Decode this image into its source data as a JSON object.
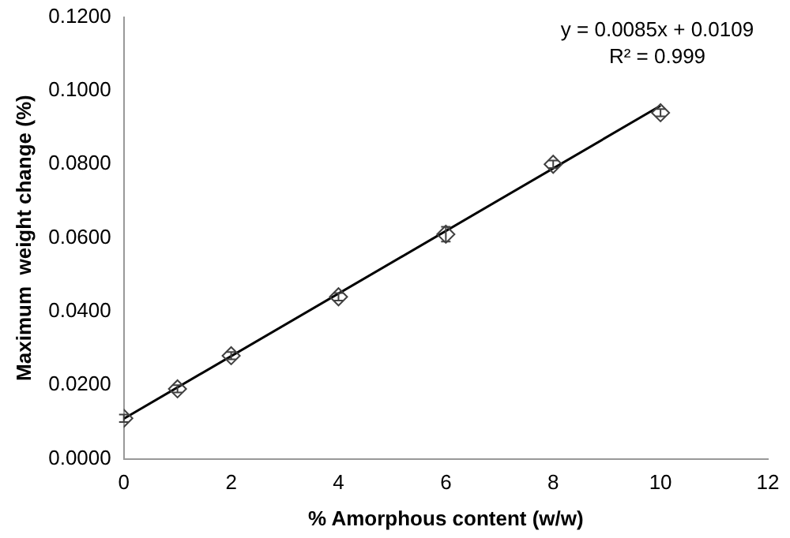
{
  "chart_data": {
    "type": "scatter",
    "xlabel": "% Amorphous content (w/w)",
    "ylabel": "Maximum  weight change (%)",
    "series": [
      {
        "type": "scatter",
        "color": "#404040",
        "marker": "diamond",
        "x": [
          0,
          1,
          2,
          4,
          6,
          8,
          10
        ],
        "values": [
          0.011,
          0.019,
          0.028,
          0.044,
          0.061,
          0.08,
          0.094
        ],
        "errors": [
          0.001,
          0.001,
          0.001,
          0.001,
          0.002,
          0.001,
          0.001
        ]
      },
      {
        "type": "line",
        "color": "#000000",
        "x": [
          0,
          10
        ],
        "values": [
          0.0109,
          0.0959
        ]
      }
    ],
    "xlim": [
      0,
      12
    ],
    "xticks": [
      0,
      2,
      4,
      6,
      8,
      10,
      12
    ],
    "ylim": [
      0,
      0.12
    ],
    "yticks": [
      {
        "value": 0,
        "label": "0.0000"
      },
      {
        "value": 0.02,
        "label": "0.0200"
      },
      {
        "value": 0.04,
        "label": "0.0400"
      },
      {
        "value": 0.06,
        "label": "0.0600"
      },
      {
        "value": 0.08,
        "label": "0.0800"
      },
      {
        "value": 0.1,
        "label": "0.1000"
      },
      {
        "value": 0.12,
        "label": "0.1200"
      }
    ],
    "grid": false,
    "legend": false,
    "annotations": [
      "y = 0.0085x + 0.0109",
      "R² = 0.999"
    ]
  }
}
